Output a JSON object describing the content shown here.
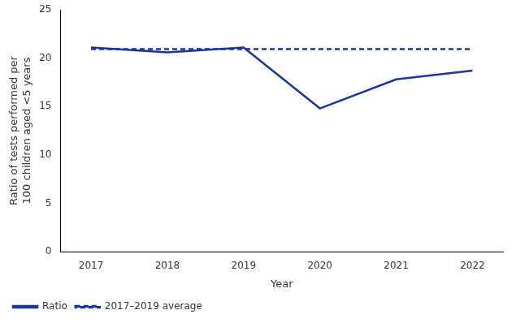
{
  "chart_data": {
    "type": "line",
    "x": [
      2017,
      2018,
      2019,
      2020,
      2021,
      2022
    ],
    "series": [
      {
        "name": "Ratio",
        "color": "#1a35a0",
        "line_style": "solid",
        "values": [
          21.1,
          20.6,
          21.1,
          14.8,
          17.8,
          18.7
        ]
      },
      {
        "name": "2017–2019 average",
        "color": "#1a35a0",
        "line_style": "dashed",
        "x": [
          2017,
          2022
        ],
        "values": [
          20.93,
          20.93
        ]
      }
    ],
    "xlabel": "Year",
    "ylabel": "Ratio of tests performed per\n100 children aged <5 years",
    "xlim": [
      2016.6,
      2022.4
    ],
    "xticks": [
      2017,
      2018,
      2019,
      2020,
      2021,
      2022
    ],
    "ylim": [
      0,
      25
    ],
    "yticks": [
      0,
      5,
      10,
      15,
      20,
      25
    ],
    "grid": false,
    "legend": "lower left"
  }
}
